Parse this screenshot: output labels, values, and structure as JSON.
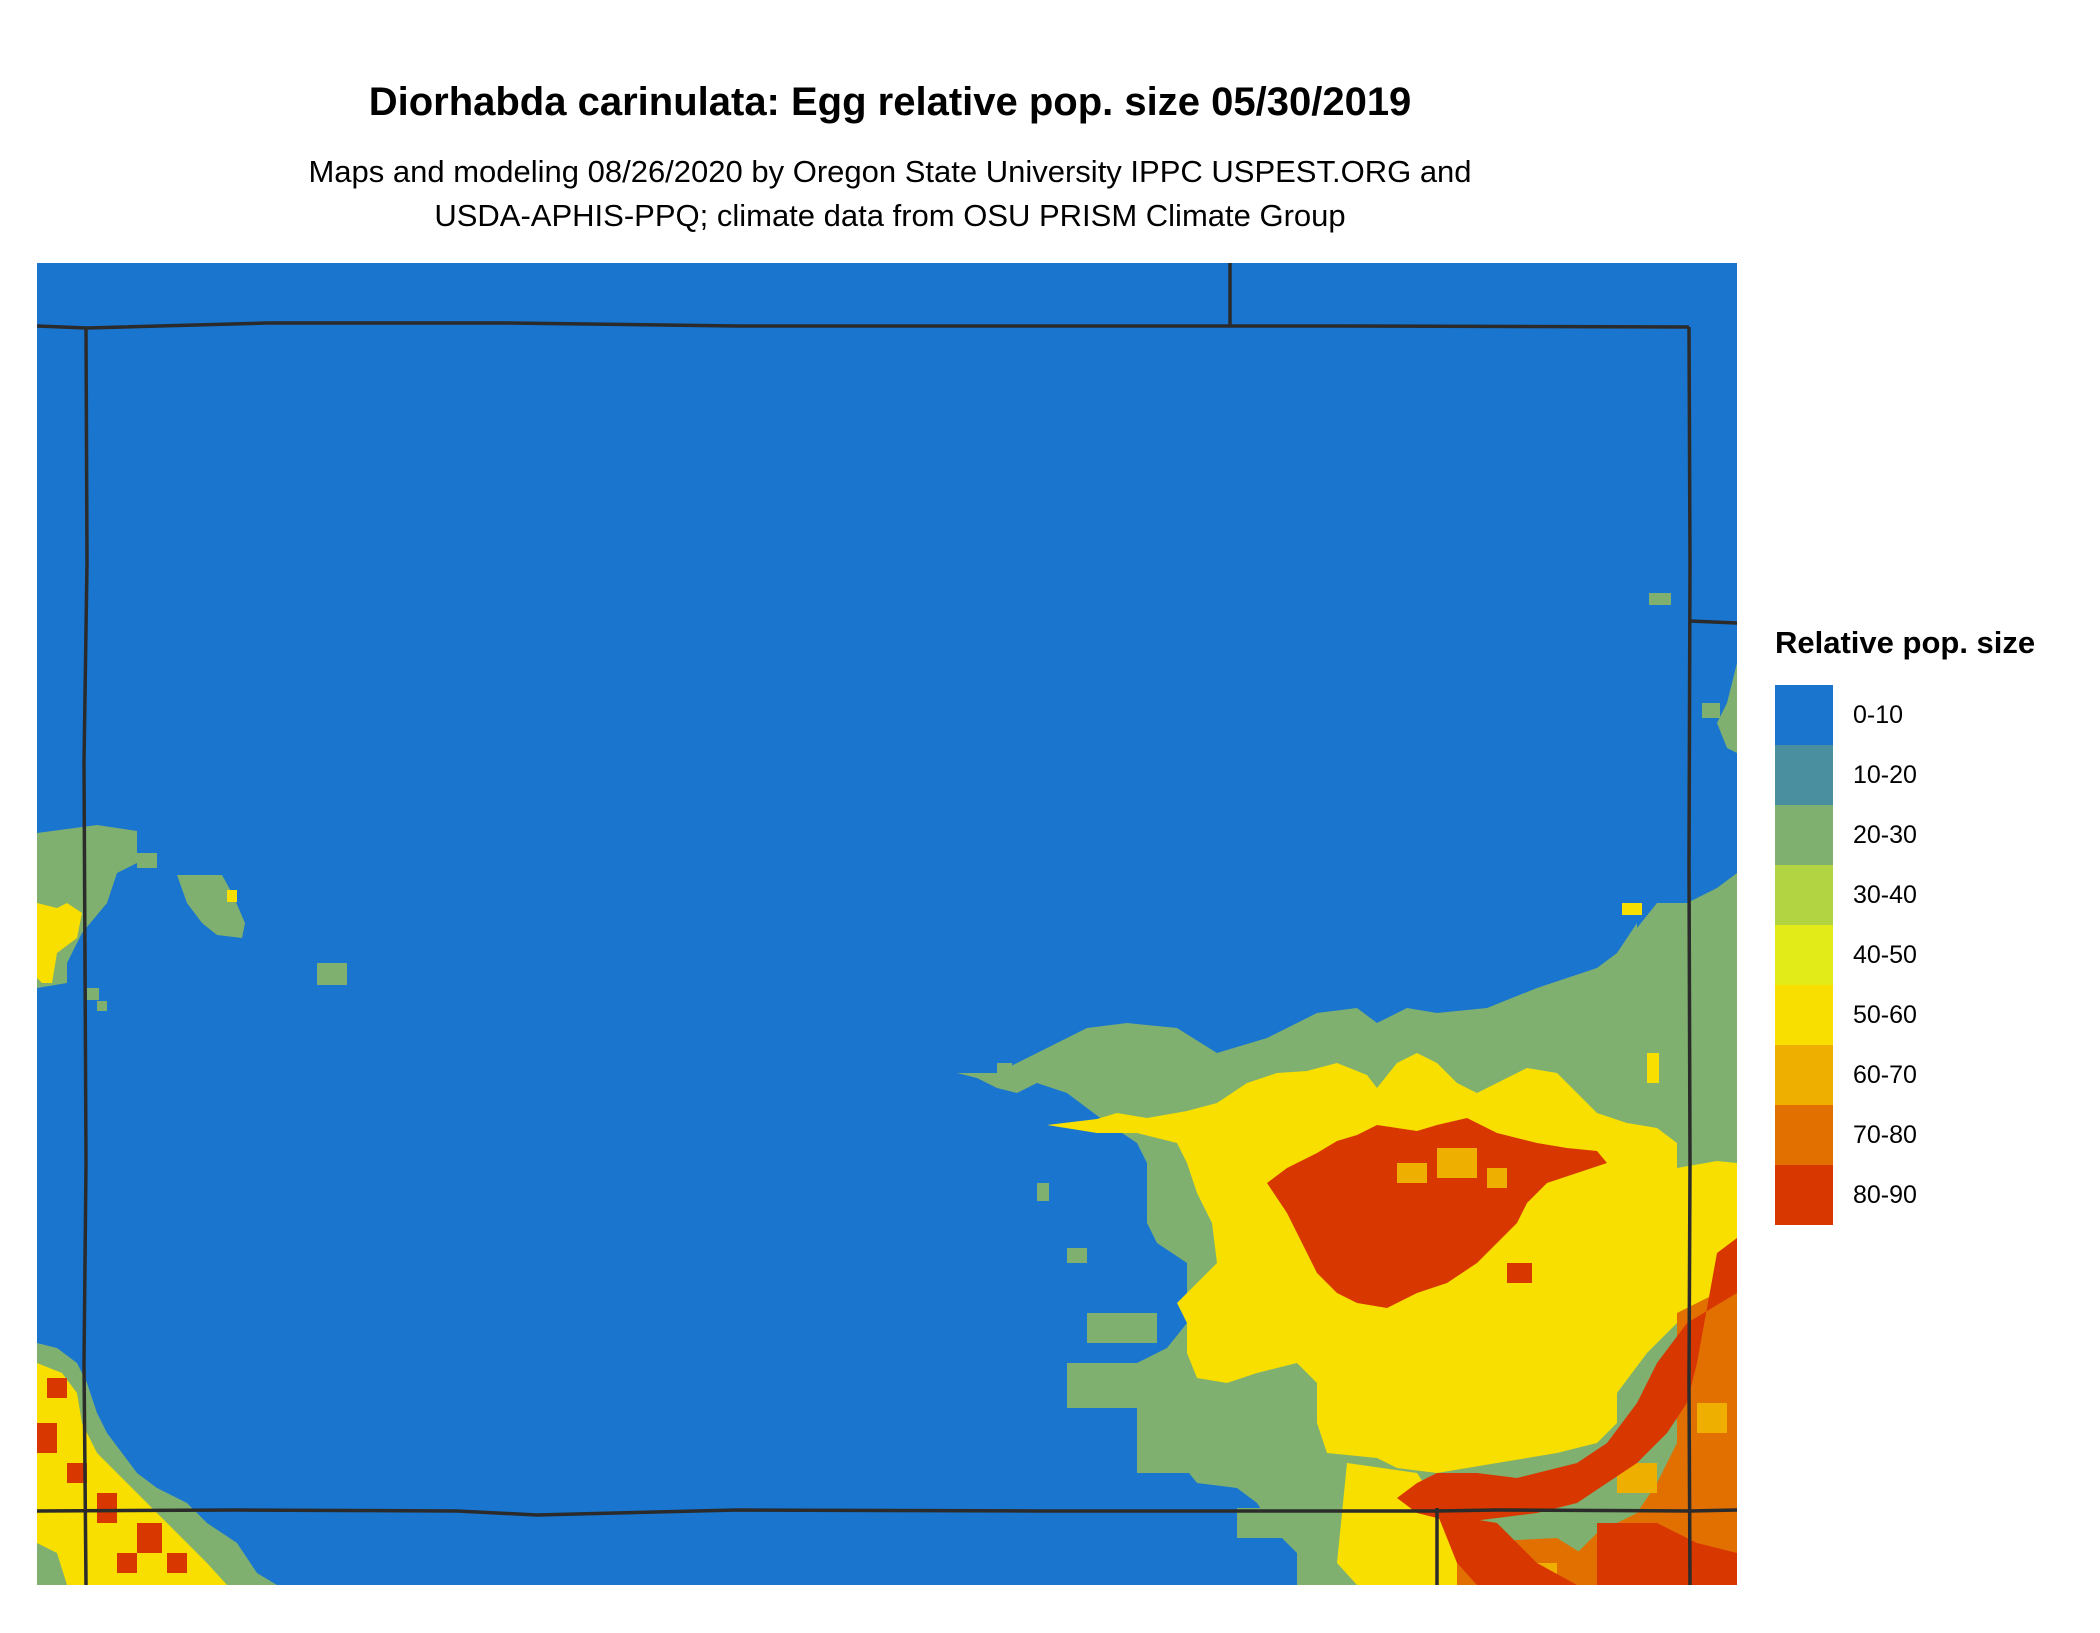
{
  "title": "Diorhabda carinulata: Egg relative pop. size 05/30/2019",
  "subtitle_lines": [
    "Maps and modeling 08/26/2020 by Oregon State University IPPC USPEST.ORG and",
    "USDA-APHIS-PPQ; climate data from OSU PRISM Climate Group"
  ],
  "legend": {
    "title": "Relative pop. size",
    "items": [
      {
        "label": "0-10",
        "color": "#1a75cf"
      },
      {
        "label": "10-20",
        "color": "#4a8fa0"
      },
      {
        "label": "20-30",
        "color": "#7fb06f"
      },
      {
        "label": "30-40",
        "color": "#b2d342"
      },
      {
        "label": "40-50",
        "color": "#e2ea17"
      },
      {
        "label": "50-60",
        "color": "#f8df00"
      },
      {
        "label": "60-70",
        "color": "#efaf00"
      },
      {
        "label": "70-80",
        "color": "#e27000"
      },
      {
        "label": "80-90",
        "color": "#d83800"
      }
    ]
  },
  "map": {
    "background_class": "0-10",
    "boundary_color": "#2b2b2b"
  }
}
